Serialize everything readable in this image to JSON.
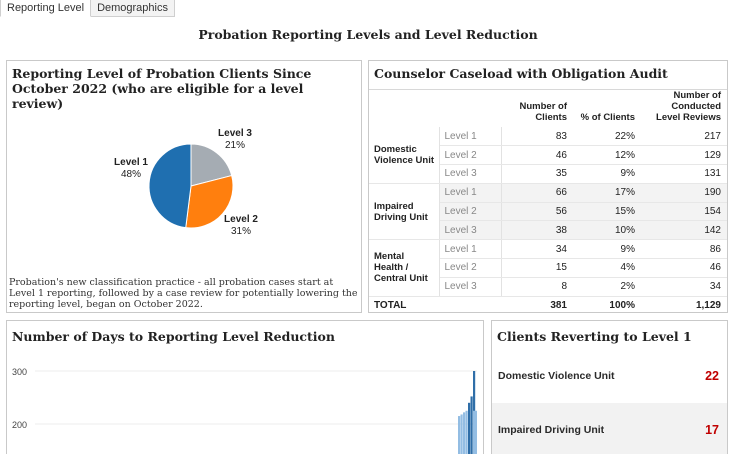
{
  "tabs": [
    {
      "label": "Reporting Level",
      "active": true
    },
    {
      "label": "Demographics",
      "active": false
    }
  ],
  "page_title": "Probation Reporting Levels and Level Reduction",
  "pie_panel": {
    "title": "Reporting Level of Probation Clients Since October 2022 (who are eligible for a level review)",
    "note": "Probation's new classification practice - all probation cases start at Level 1 reporting, followed by a case review for potentially lowering the reporting level, began on October 2022."
  },
  "caseload_panel": {
    "title": "Counselor Caseload with Obligation Audit",
    "headers": [
      "Number of Clients",
      "% of Clients",
      "Number of Conducted Level Reviews"
    ],
    "groups": [
      {
        "unit": "Domestic Violence Unit",
        "rows": [
          {
            "level": "Level 1",
            "clients": "83",
            "pct": "22%",
            "reviews": "217"
          },
          {
            "level": "Level 2",
            "clients": "46",
            "pct": "12%",
            "reviews": "129"
          },
          {
            "level": "Level 3",
            "clients": "35",
            "pct": "9%",
            "reviews": "131"
          }
        ]
      },
      {
        "unit": "Impaired Driving Unit",
        "rows": [
          {
            "level": "Level 1",
            "clients": "66",
            "pct": "17%",
            "reviews": "190"
          },
          {
            "level": "Level 2",
            "clients": "56",
            "pct": "15%",
            "reviews": "154"
          },
          {
            "level": "Level 3",
            "clients": "38",
            "pct": "10%",
            "reviews": "142"
          }
        ]
      },
      {
        "unit": "Mental Health / Central Unit",
        "rows": [
          {
            "level": "Level 1",
            "clients": "34",
            "pct": "9%",
            "reviews": "86"
          },
          {
            "level": "Level 2",
            "clients": "15",
            "pct": "4%",
            "reviews": "46"
          },
          {
            "level": "Level 3",
            "clients": "8",
            "pct": "2%",
            "reviews": "34"
          }
        ]
      }
    ],
    "total": {
      "label": "TOTAL",
      "clients": "381",
      "pct": "100%",
      "reviews": "1,129"
    }
  },
  "days_panel": {
    "title": "Number of Days to Reporting Level Reduction"
  },
  "revert_panel": {
    "title": "Clients Reverting to Level 1",
    "rows": [
      {
        "label": "Domestic Violence Unit",
        "value": "22"
      },
      {
        "label": "Impaired Driving Unit",
        "value": "17"
      }
    ]
  },
  "colors": {
    "level1": "#1f6fb0",
    "level2": "#ff7f0e",
    "level3": "#a5acb3",
    "accent_red": "#c00000",
    "bar_dark": "#2f6ea8",
    "bar_light": "#93bde3"
  },
  "chart_data": [
    {
      "type": "pie",
      "categories": [
        "Level 1",
        "Level 2",
        "Level 3"
      ],
      "values": [
        48,
        31,
        21
      ],
      "labels": [
        "48%",
        "31%",
        "21%"
      ],
      "title": "Reporting Level of Probation Clients Since October 2022 (who are eligible for a level review)"
    },
    {
      "type": "bar",
      "title": "Number of Days to Reporting Level Reduction",
      "yticks": [
        300,
        200
      ],
      "ylim": [
        120,
        330
      ],
      "series": [
        {
          "name": "",
          "values": [
            215,
            218,
            222,
            225,
            240,
            252,
            300
          ]
        }
      ]
    }
  ]
}
